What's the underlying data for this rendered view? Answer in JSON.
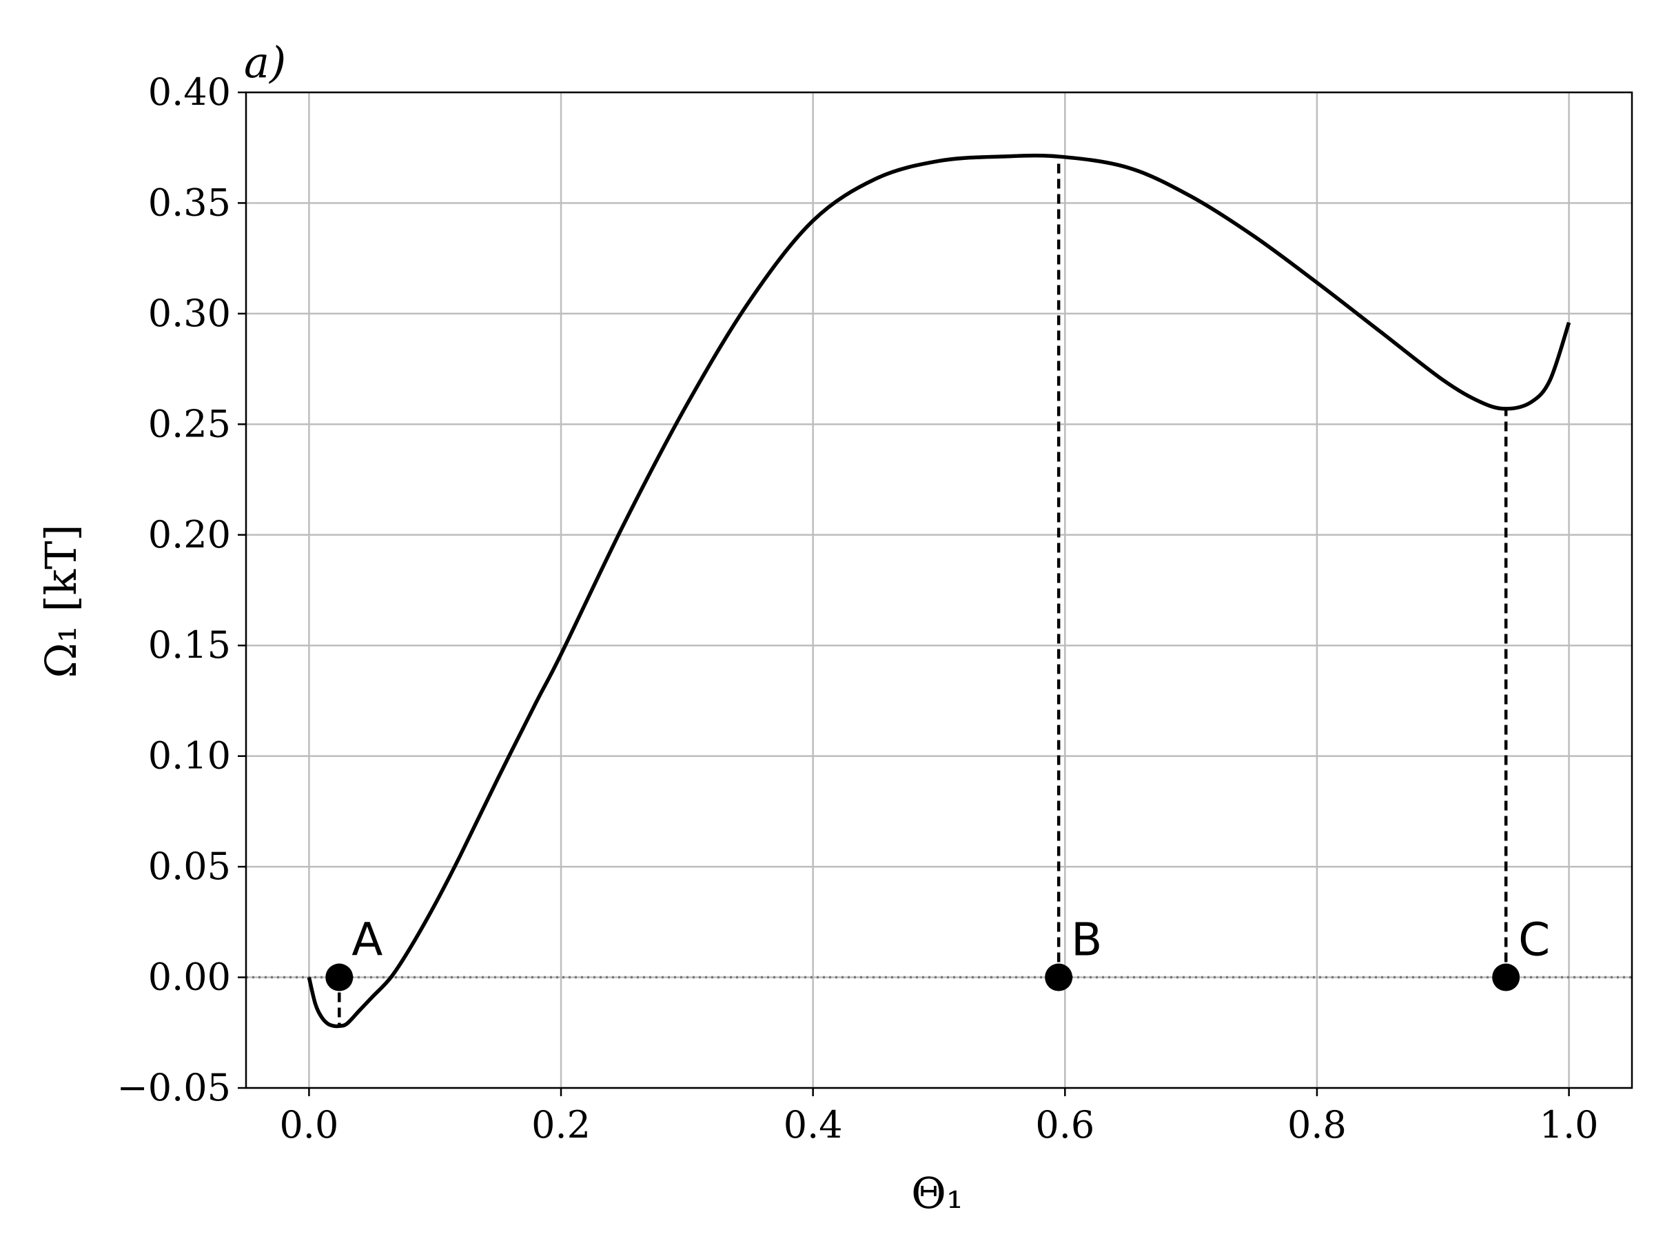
{
  "chart_data": {
    "type": "line",
    "panel_label": "a)",
    "xlabel": "Θ₁",
    "ylabel": "Ω₁ [kT]",
    "xlim": [
      -0.05,
      1.05
    ],
    "ylim": [
      -0.05,
      0.4
    ],
    "grid": true,
    "x_ticks": [
      0.0,
      0.2,
      0.4,
      0.6,
      0.8,
      1.0
    ],
    "x_tick_labels": [
      "0.0",
      "0.2",
      "0.4",
      "0.6",
      "0.8",
      "1.0"
    ],
    "y_ticks": [
      -0.05,
      0.0,
      0.05,
      0.1,
      0.15,
      0.2,
      0.25,
      0.3,
      0.35,
      0.4
    ],
    "y_tick_labels": [
      "−0.05",
      "0.00",
      "0.05",
      "0.10",
      "0.15",
      "0.20",
      "0.25",
      "0.30",
      "0.35",
      "0.40"
    ],
    "zero_line": {
      "y": 0.0,
      "style": "dotted",
      "color": "#777777"
    },
    "series": [
      {
        "color": "#000000",
        "x": [
          0.0,
          0.005,
          0.01,
          0.015,
          0.02,
          0.024,
          0.03,
          0.04,
          0.05,
          0.065,
          0.08,
          0.1,
          0.12,
          0.15,
          0.18,
          0.2,
          0.25,
          0.3,
          0.35,
          0.4,
          0.45,
          0.5,
          0.55,
          0.595,
          0.65,
          0.7,
          0.75,
          0.8,
          0.85,
          0.9,
          0.93,
          0.95,
          0.97,
          0.985,
          1.0
        ],
        "y": [
          0.0,
          -0.012,
          -0.018,
          -0.021,
          -0.022,
          -0.022,
          -0.021,
          -0.015,
          -0.009,
          0.0,
          0.013,
          0.033,
          0.055,
          0.09,
          0.124,
          0.146,
          0.205,
          0.259,
          0.306,
          0.342,
          0.361,
          0.369,
          0.371,
          0.371,
          0.366,
          0.353,
          0.335,
          0.314,
          0.292,
          0.27,
          0.26,
          0.257,
          0.26,
          0.27,
          0.296
        ]
      }
    ],
    "points": [
      {
        "label": "A",
        "x": 0.024,
        "y": 0.0,
        "dash_to_y": -0.022
      },
      {
        "label": "B",
        "x": 0.595,
        "y": 0.0,
        "dash_to_y": 0.371
      },
      {
        "label": "C",
        "x": 0.95,
        "y": 0.0,
        "dash_to_y": 0.257
      }
    ]
  }
}
